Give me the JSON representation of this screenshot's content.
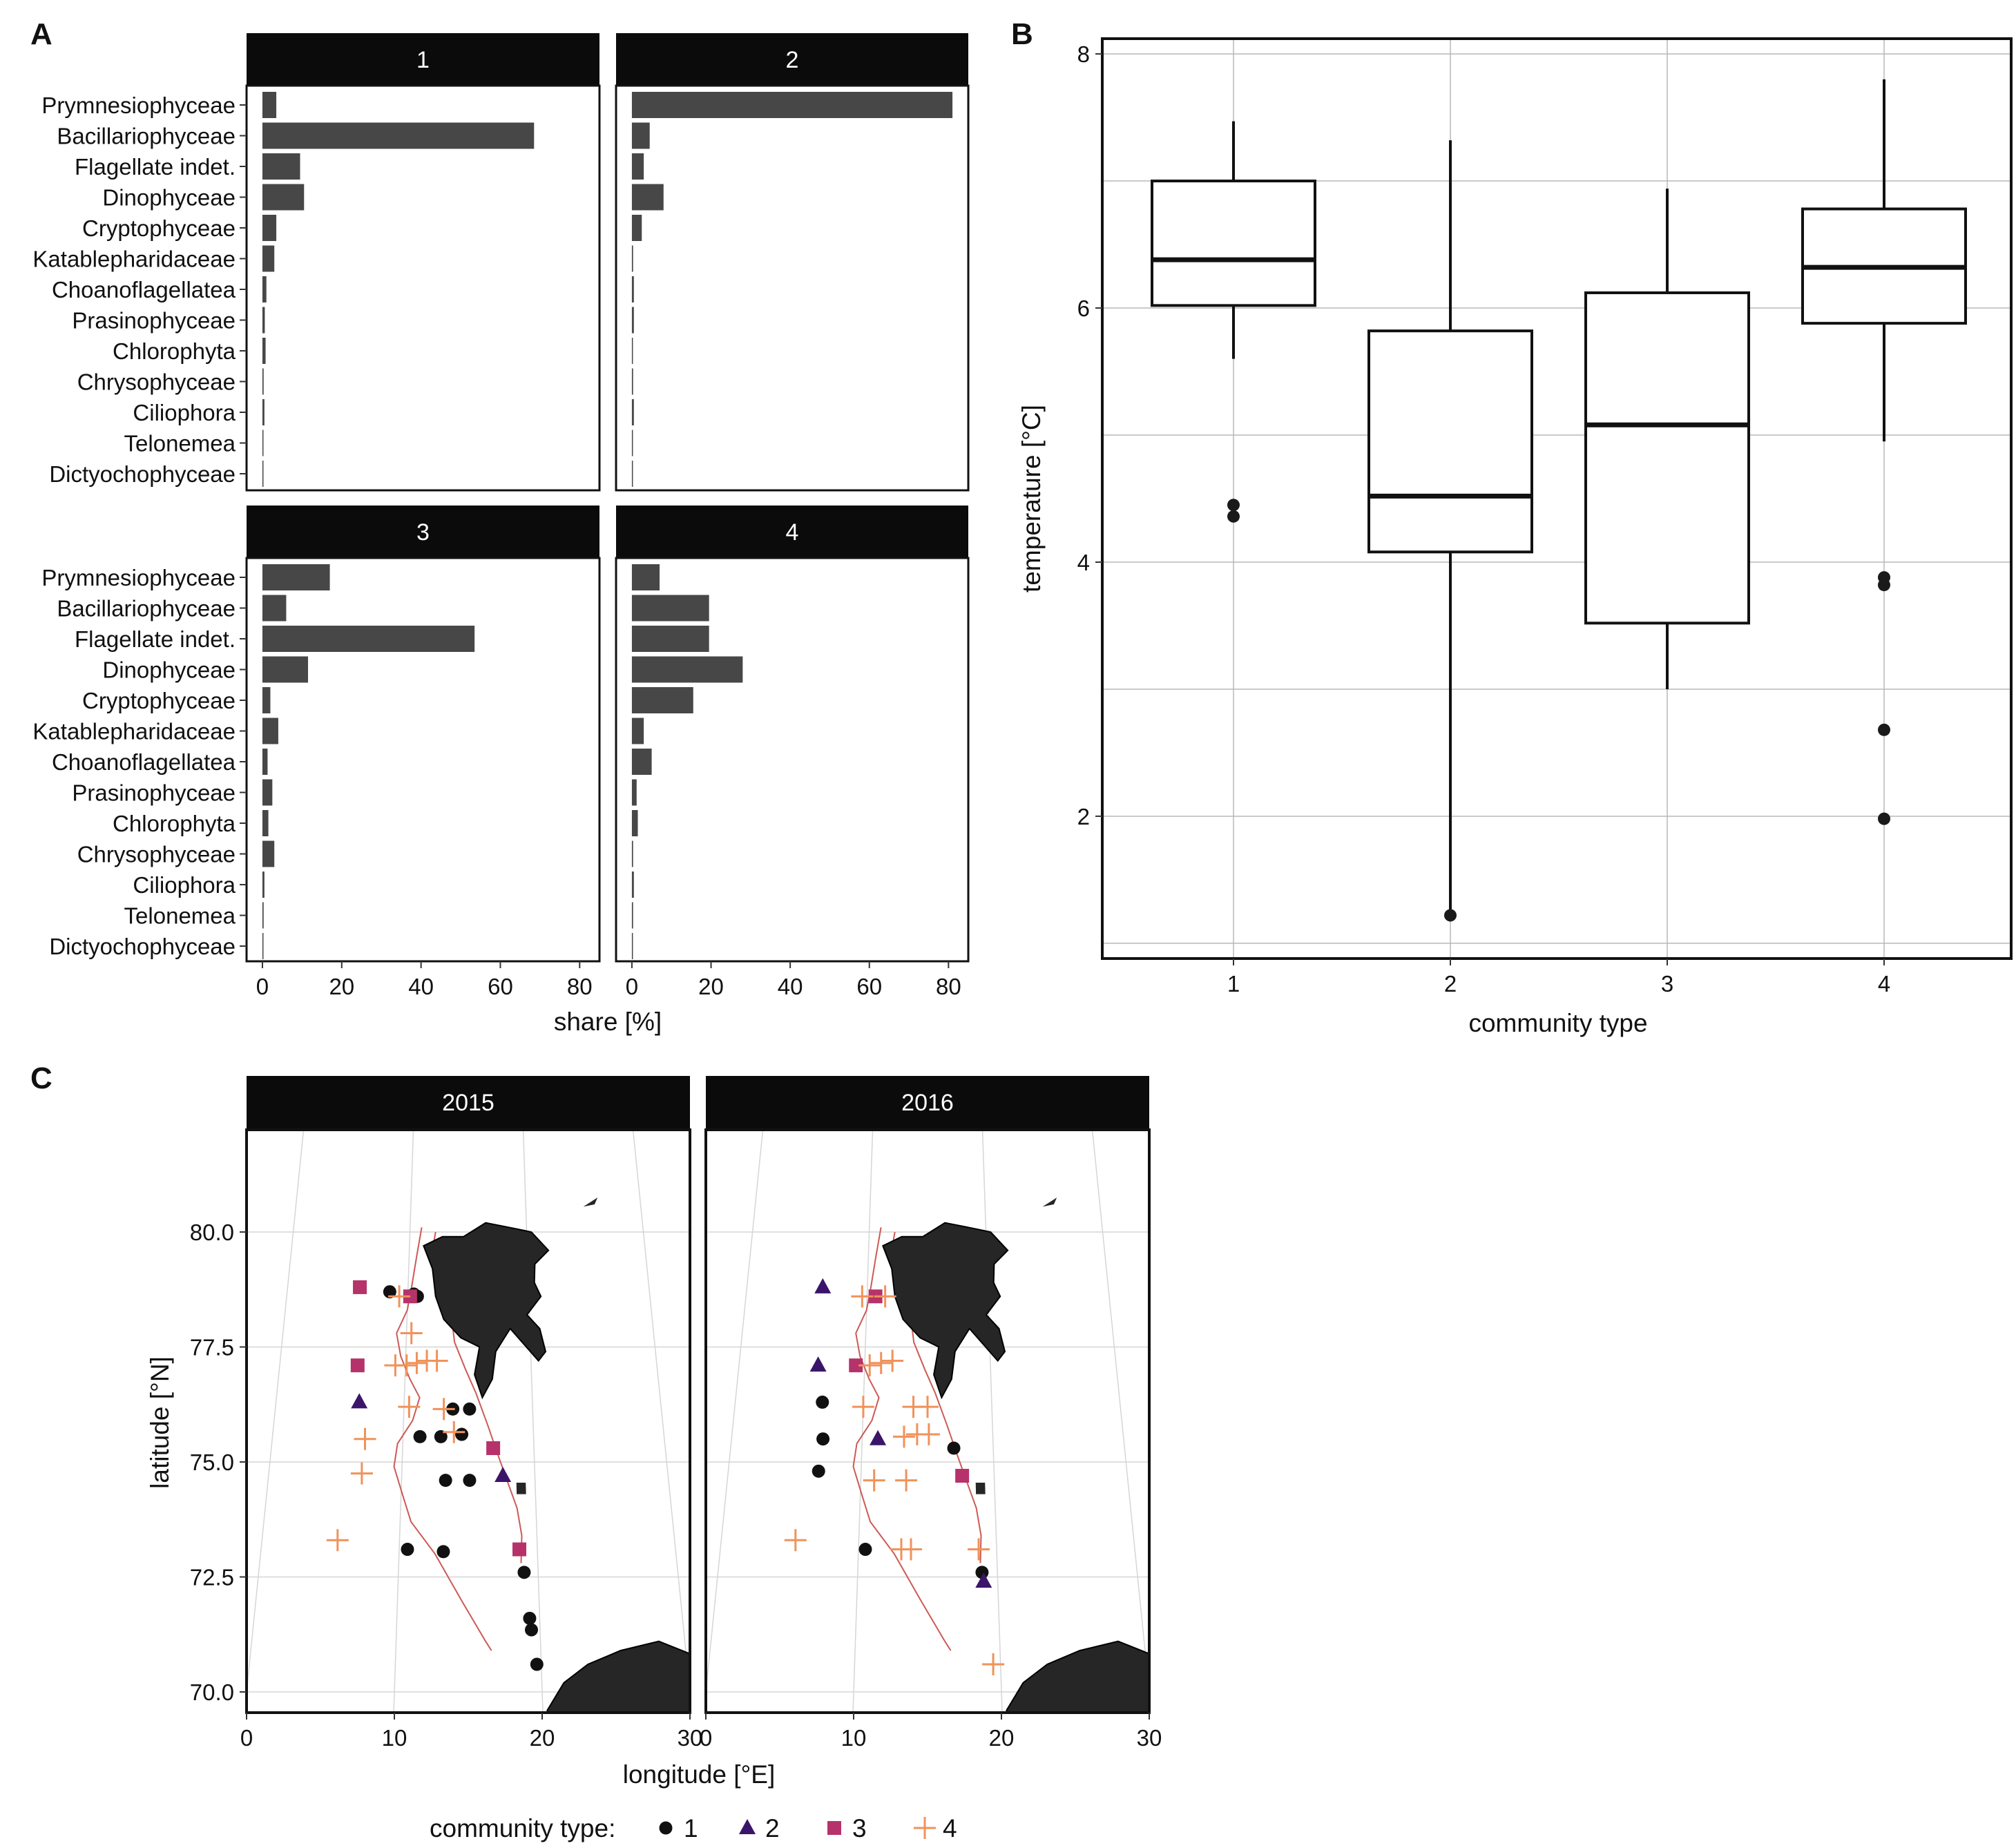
{
  "panels": {
    "A": {
      "letter": "A"
    },
    "B": {
      "letter": "B"
    },
    "C": {
      "letter": "C"
    }
  },
  "chart_data": [
    {
      "id": "A",
      "type": "bar",
      "orientation": "horizontal",
      "facets": [
        "1",
        "2",
        "3",
        "4"
      ],
      "categories": [
        "Prymnesiophyceae",
        "Bacillariophyceae",
        "Flagellate indet.",
        "Dinophyceae",
        "Cryptophyceae",
        "Katablepharidaceae",
        "Choanoflagellatea",
        "Prasinophyceae",
        "Chlorophyta",
        "Chrysophyceae",
        "Ciliophora",
        "Telonemea",
        "Dictyochophyceae"
      ],
      "series": [
        {
          "name": "1",
          "values": [
            3.5,
            68.5,
            9.5,
            10.5,
            3.5,
            3,
            1,
            0.6,
            0.8,
            0.3,
            0.5,
            0.1,
            0.1
          ]
        },
        {
          "name": "2",
          "values": [
            81,
            4.5,
            3,
            8,
            2.5,
            0.3,
            0.5,
            0.5,
            0.2,
            0.3,
            0.5,
            0.1,
            0.1
          ]
        },
        {
          "name": "3",
          "values": [
            17,
            6,
            53.5,
            11.5,
            2,
            4,
            1.3,
            2.5,
            1.5,
            3,
            0.5,
            0.3,
            0.1
          ]
        },
        {
          "name": "4",
          "values": [
            7,
            19.5,
            19.5,
            28,
            15.5,
            3,
            5,
            1.2,
            1.5,
            0.3,
            0.5,
            0.3,
            0.1
          ]
        }
      ],
      "xlabel": "share [%]",
      "xticks": [
        0,
        20,
        40,
        60,
        80
      ],
      "xlim": [
        -4,
        85
      ]
    },
    {
      "id": "B",
      "type": "box",
      "categories": [
        "1",
        "2",
        "3",
        "4"
      ],
      "boxes": [
        {
          "name": "1",
          "whisker_low": 5.6,
          "q1": 6.02,
          "median": 6.38,
          "q3": 7.0,
          "whisker_high": 7.47,
          "outliers": [
            4.45,
            4.36
          ]
        },
        {
          "name": "2",
          "whisker_low": 1.25,
          "q1": 4.08,
          "median": 4.52,
          "q3": 5.82,
          "whisker_high": 7.32,
          "outliers": [
            1.22
          ]
        },
        {
          "name": "3",
          "whisker_low": 3.0,
          "q1": 3.52,
          "median": 5.08,
          "q3": 6.12,
          "whisker_high": 6.94,
          "outliers": []
        },
        {
          "name": "4",
          "whisker_low": 4.95,
          "q1": 5.88,
          "median": 6.32,
          "q3": 6.78,
          "whisker_high": 7.8,
          "outliers": [
            3.88,
            3.82,
            2.68,
            1.98
          ]
        }
      ],
      "xlabel": "community type",
      "ylabel": "temperature [°C]",
      "yticks": [
        2,
        4,
        6,
        8
      ],
      "ylim": [
        0.88,
        8.12
      ],
      "grid": true
    },
    {
      "id": "C",
      "type": "scatter",
      "facets": [
        "2015",
        "2016"
      ],
      "xlabel": "longitude [°E]",
      "ylabel": "latitude [°N]",
      "xticks": [
        0,
        10,
        20,
        30
      ],
      "yticks": [
        "70.0",
        "72.5",
        "75.0",
        "77.5",
        "80.0"
      ],
      "xlim": [
        0,
        30
      ],
      "ylim": [
        69.5,
        82
      ],
      "legend_title": "community type:",
      "legend_entries": [
        "1",
        "2",
        "3",
        "4"
      ],
      "legend_position": "bottom",
      "points": {
        "2015": [
          {
            "lon": 8.5,
            "lat": 78.7,
            "t": 1
          },
          {
            "lon": 10.5,
            "lat": 78.65,
            "t": 1
          },
          {
            "lon": 10.8,
            "lat": 78.6,
            "t": 1
          },
          {
            "lon": 13.8,
            "lat": 76.15,
            "t": 1
          },
          {
            "lon": 15.1,
            "lat": 76.15,
            "t": 1
          },
          {
            "lon": 11.3,
            "lat": 75.55,
            "t": 1
          },
          {
            "lon": 12.9,
            "lat": 75.55,
            "t": 1
          },
          {
            "lon": 14.5,
            "lat": 75.6,
            "t": 1
          },
          {
            "lon": 13.3,
            "lat": 74.6,
            "t": 1
          },
          {
            "lon": 15.1,
            "lat": 74.6,
            "t": 1
          },
          {
            "lon": 10.6,
            "lat": 73.1,
            "t": 1
          },
          {
            "lon": 13.2,
            "lat": 73.05,
            "t": 1
          },
          {
            "lon": 19.0,
            "lat": 72.6,
            "t": 1
          },
          {
            "lon": 19.3,
            "lat": 71.6,
            "t": 1
          },
          {
            "lon": 19.4,
            "lat": 71.35,
            "t": 1
          },
          {
            "lon": 19.7,
            "lat": 70.6,
            "t": 1
          },
          {
            "lon": 6.5,
            "lat": 76.3,
            "t": 2
          },
          {
            "lon": 17.6,
            "lat": 74.7,
            "t": 2
          },
          {
            "lon": 6.0,
            "lat": 78.8,
            "t": 3
          },
          {
            "lon": 10.2,
            "lat": 78.6,
            "t": 3
          },
          {
            "lon": 6.2,
            "lat": 77.1,
            "t": 3
          },
          {
            "lon": 16.9,
            "lat": 75.3,
            "t": 3
          },
          {
            "lon": 18.7,
            "lat": 73.1,
            "t": 3
          },
          {
            "lon": 9.3,
            "lat": 78.6,
            "t": 4
          },
          {
            "lon": 10.4,
            "lat": 77.8,
            "t": 4
          },
          {
            "lon": 9.2,
            "lat": 77.1,
            "t": 4
          },
          {
            "lon": 10.1,
            "lat": 77.1,
            "t": 4
          },
          {
            "lon": 10.9,
            "lat": 77.15,
            "t": 4
          },
          {
            "lon": 11.7,
            "lat": 77.2,
            "t": 4
          },
          {
            "lon": 12.5,
            "lat": 77.2,
            "t": 4
          },
          {
            "lon": 10.4,
            "lat": 76.2,
            "t": 4
          },
          {
            "lon": 13.1,
            "lat": 76.15,
            "t": 4
          },
          {
            "lon": 13.9,
            "lat": 75.65,
            "t": 4
          },
          {
            "lon": 7.1,
            "lat": 75.5,
            "t": 4
          },
          {
            "lon": 7.0,
            "lat": 74.75,
            "t": 4
          },
          {
            "lon": 5.5,
            "lat": 73.3,
            "t": 4
          }
        ],
        "2016": [
          {
            "lon": 6.8,
            "lat": 76.3,
            "t": 1
          },
          {
            "lon": 7.0,
            "lat": 75.5,
            "t": 1
          },
          {
            "lon": 6.8,
            "lat": 74.8,
            "t": 1
          },
          {
            "lon": 17.0,
            "lat": 75.3,
            "t": 1
          },
          {
            "lon": 10.5,
            "lat": 73.1,
            "t": 1
          },
          {
            "lon": 18.9,
            "lat": 72.6,
            "t": 1
          },
          {
            "lon": 6.3,
            "lat": 78.8,
            "t": 2
          },
          {
            "lon": 6.3,
            "lat": 77.1,
            "t": 2
          },
          {
            "lon": 11.2,
            "lat": 75.5,
            "t": 2
          },
          {
            "lon": 19.0,
            "lat": 72.4,
            "t": 2
          },
          {
            "lon": 10.7,
            "lat": 78.6,
            "t": 3
          },
          {
            "lon": 9.3,
            "lat": 77.1,
            "t": 3
          },
          {
            "lon": 17.6,
            "lat": 74.7,
            "t": 3
          },
          {
            "lon": 9.6,
            "lat": 78.6,
            "t": 4
          },
          {
            "lon": 11.5,
            "lat": 78.6,
            "t": 4
          },
          {
            "lon": 10.4,
            "lat": 77.1,
            "t": 4
          },
          {
            "lon": 11.3,
            "lat": 77.15,
            "t": 4
          },
          {
            "lon": 12.2,
            "lat": 77.2,
            "t": 4
          },
          {
            "lon": 10.0,
            "lat": 76.2,
            "t": 4
          },
          {
            "lon": 13.9,
            "lat": 76.2,
            "t": 4
          },
          {
            "lon": 15.0,
            "lat": 76.2,
            "t": 4
          },
          {
            "lon": 13.2,
            "lat": 75.55,
            "t": 4
          },
          {
            "lon": 14.2,
            "lat": 75.6,
            "t": 4
          },
          {
            "lon": 15.1,
            "lat": 75.6,
            "t": 4
          },
          {
            "lon": 11.0,
            "lat": 74.6,
            "t": 4
          },
          {
            "lon": 13.4,
            "lat": 74.6,
            "t": 4
          },
          {
            "lon": 13.1,
            "lat": 73.1,
            "t": 4
          },
          {
            "lon": 13.8,
            "lat": 73.1,
            "t": 4
          },
          {
            "lon": 5.4,
            "lat": 73.3,
            "t": 4
          },
          {
            "lon": 18.7,
            "lat": 73.1,
            "t": 4
          },
          {
            "lon": 19.5,
            "lat": 70.6,
            "t": 4
          }
        ]
      }
    }
  ],
  "colors": {
    "bar": "#474747",
    "strip": "#0b0b0b",
    "strip_text": "#ffffff",
    "grid": "#b8b8b8",
    "land": "#262626",
    "contour": "#cc5a55",
    "type1": "#111111",
    "type2": "#3b1569",
    "type3": "#b5336a",
    "type4": "#f0925a"
  }
}
